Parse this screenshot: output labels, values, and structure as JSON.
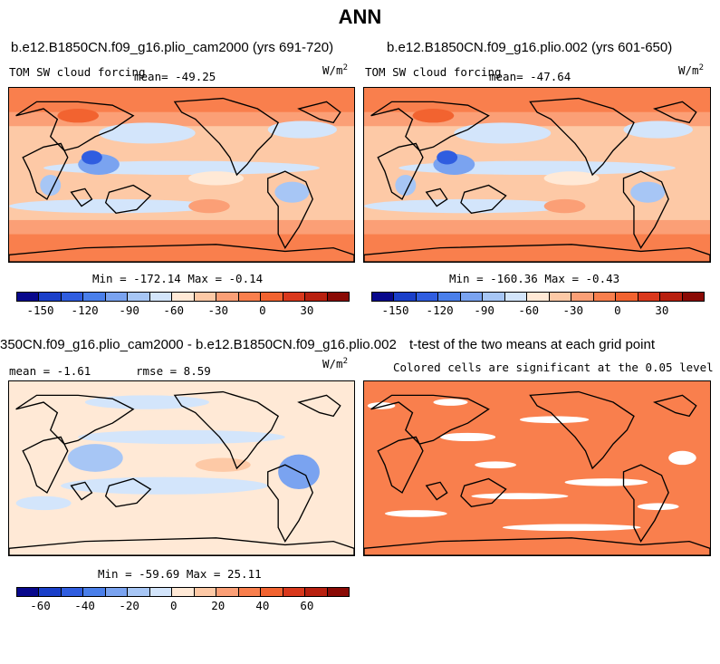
{
  "title": "ANN",
  "panels": [
    {
      "title": "b.e12.B1850CN.f09_g16.plio_cam2000 (yrs 691-720)",
      "left_label": "TOM SW cloud forcing",
      "mean_label": "mean= -49.25",
      "units": "W/m",
      "units_sup": "2",
      "stats": "Min = -172.14 Max =  -0.14"
    },
    {
      "title": "b.e12.B1850CN.f09_g16.plio.002 (yrs 601-650)",
      "left_label": "TOM SW cloud forcing",
      "mean_label": "mean= -47.64",
      "units": "W/m",
      "units_sup": "2",
      "stats": "Min = -160.36 Max =  -0.43"
    },
    {
      "title": "350CN.f09_g16.plio_cam2000 - b.e12.B1850CN.f09_g16.plio.002",
      "mean_label": "mean =  -1.61",
      "rmse_label": "rmse =   8.59",
      "units": "W/m",
      "units_sup": "2",
      "stats": "Min = -59.69 Max =  25.11"
    },
    {
      "title": "t-test of the two means at each grid point",
      "subtitle": "Colored cells are significant at the 0.05 level"
    }
  ],
  "colorbar_top": {
    "colors": [
      "#08088c",
      "#1a3fc9",
      "#2f5de0",
      "#4a7fea",
      "#7aa3f0",
      "#a7c6f5",
      "#d3e5fb",
      "#ffe9d6",
      "#fdc9a6",
      "#fb9f76",
      "#f97f4d",
      "#f26330",
      "#d9381c",
      "#b8200f",
      "#8a0a05"
    ],
    "ticks": [
      "-150",
      "-120",
      "-90",
      "-60",
      "-30",
      "0",
      "30"
    ]
  },
  "colorbar_bottom": {
    "colors": [
      "#08088c",
      "#1a3fc9",
      "#2f5de0",
      "#4a7fea",
      "#7aa3f0",
      "#a7c6f5",
      "#d3e5fb",
      "#ffe9d6",
      "#fdc9a6",
      "#fb9f76",
      "#f97f4d",
      "#f26330",
      "#d9381c",
      "#b8200f",
      "#8a0a05"
    ],
    "ticks": [
      "-60",
      "-40",
      "-20",
      "0",
      "20",
      "40",
      "60"
    ]
  },
  "chart_data": [
    {
      "type": "heatmap",
      "title": "b.e12.B1850CN.f09_g16.plio_cam2000 (yrs 691-720)",
      "variable": "TOM SW cloud forcing",
      "units": "W/m2",
      "mean": -49.25,
      "min": -172.14,
      "max": -0.14,
      "colorbar_ticks": [
        -150,
        -120,
        -90,
        -60,
        -30,
        0,
        30
      ]
    },
    {
      "type": "heatmap",
      "title": "b.e12.B1850CN.f09_g16.plio.002 (yrs 601-650)",
      "variable": "TOM SW cloud forcing",
      "units": "W/m2",
      "mean": -47.64,
      "min": -160.36,
      "max": -0.43,
      "colorbar_ticks": [
        -150,
        -120,
        -90,
        -60,
        -30,
        0,
        30
      ]
    },
    {
      "type": "heatmap",
      "title": "350CN.f09_g16.plio_cam2000 - b.e12.B1850CN.f09_g16.plio.002",
      "units": "W/m2",
      "mean": -1.61,
      "rmse": 8.59,
      "min": -59.69,
      "max": 25.11,
      "colorbar_ticks": [
        -60,
        -40,
        -20,
        0,
        20,
        40,
        60
      ]
    },
    {
      "type": "heatmap",
      "title": "t-test of the two means at each grid point",
      "subtitle": "Colored cells are significant at the 0.05 level"
    }
  ]
}
